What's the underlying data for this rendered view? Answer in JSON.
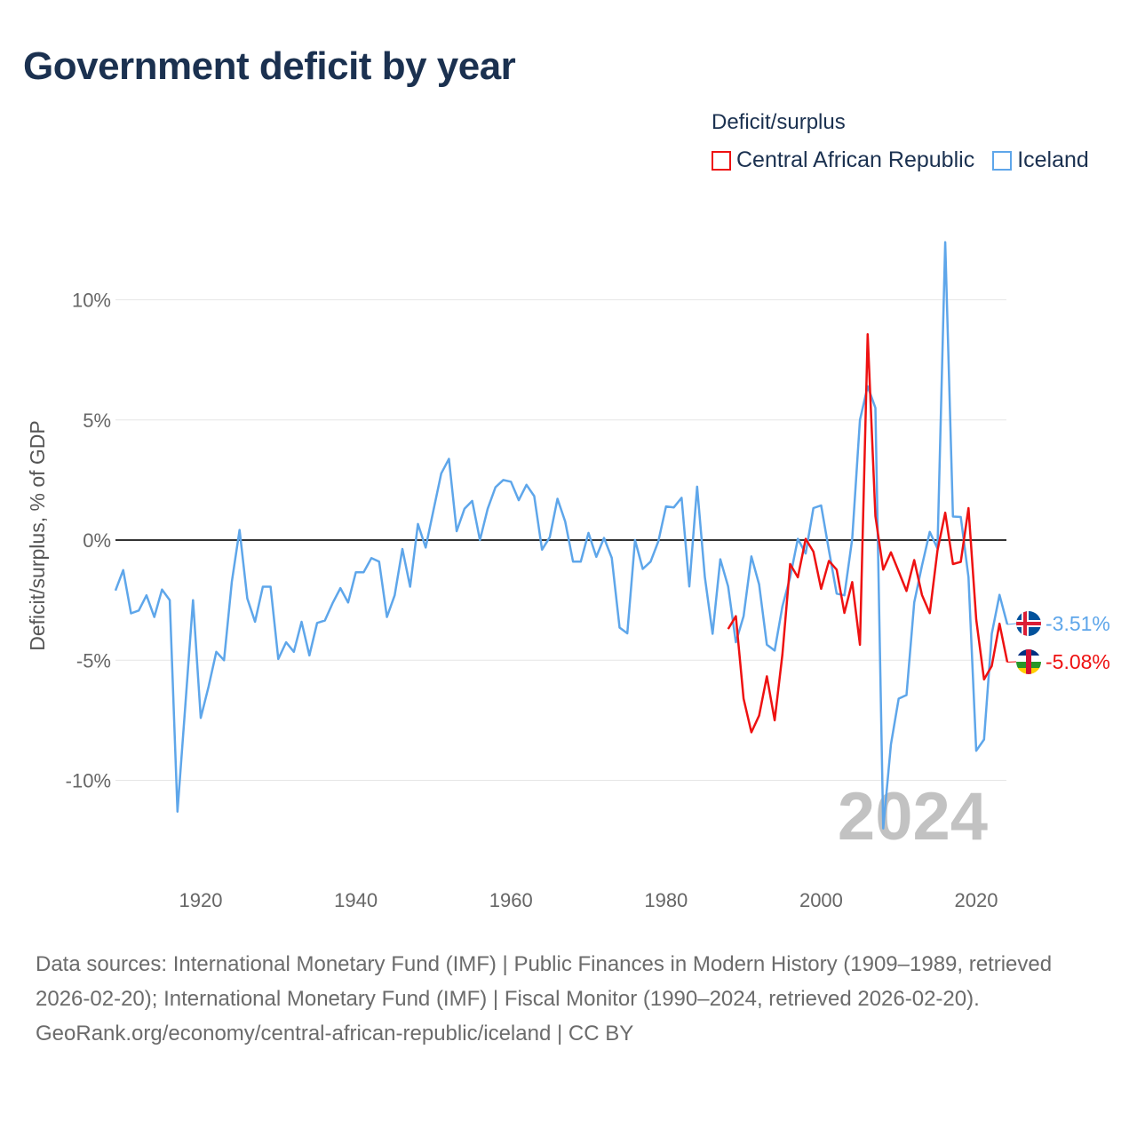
{
  "title": "Government deficit by year",
  "colors": {
    "car": "#ee1111",
    "iceland": "#5ea6ea",
    "zero": "#333333",
    "grid": "#e6e6e6",
    "text": "#1b3150"
  },
  "chart_data": {
    "type": "line",
    "title": "Government deficit by year",
    "ylabel": "Deficit/surplus, % of GDP",
    "xlabel": "",
    "xlim": [
      1909,
      2024
    ],
    "ylim": [
      -13,
      13
    ],
    "x_ticks": [
      1920,
      1940,
      1960,
      1980,
      2000,
      2020
    ],
    "x_tick_labels": [
      "1920",
      "1940",
      "1960",
      "1980",
      "2000",
      "2020"
    ],
    "y_ticks": [
      10,
      5,
      0,
      -5,
      -10
    ],
    "y_tick_labels": [
      "10%",
      "5%",
      "0%",
      "-5%",
      "-10%"
    ],
    "grid": true,
    "legend_title": "Deficit/surplus",
    "legend_position": "top-right",
    "year_watermark": "2024",
    "series": [
      {
        "name": "Central African Republic",
        "key": "car",
        "start_year": 1988,
        "end_label": "-5.08%",
        "values": [
          -3.7,
          -3.17,
          -6.6,
          -8.0,
          -7.3,
          -5.67,
          -7.5,
          -4.76,
          -1.0,
          -1.55,
          0.05,
          -0.48,
          -2.03,
          -0.87,
          -1.23,
          -3.03,
          -1.75,
          -4.36,
          8.57,
          1.0,
          -1.23,
          -0.51,
          -1.31,
          -2.12,
          -0.83,
          -2.28,
          -3.04,
          -0.43,
          1.14,
          -1.0,
          -0.91,
          1.33,
          -3.3,
          -5.8,
          -5.24,
          -3.48,
          -5.08
        ]
      },
      {
        "name": "Iceland",
        "key": "iceland",
        "start_year": 1909,
        "end_label": "-3.51%",
        "values": [
          -2.1,
          -1.25,
          -3.05,
          -2.93,
          -2.3,
          -3.2,
          -2.06,
          -2.5,
          -11.3,
          -6.9,
          -2.5,
          -7.4,
          -6.1,
          -4.65,
          -5.0,
          -1.73,
          0.42,
          -2.43,
          -3.4,
          -1.94,
          -1.94,
          -4.95,
          -4.25,
          -4.65,
          -3.4,
          -4.8,
          -3.45,
          -3.35,
          -2.63,
          -2.0,
          -2.6,
          -1.34,
          -1.34,
          -0.75,
          -0.9,
          -3.2,
          -2.3,
          -0.37,
          -1.94,
          0.67,
          -0.31,
          1.23,
          2.77,
          3.38,
          0.37,
          1.3,
          1.63,
          0.0,
          1.3,
          2.2,
          2.5,
          2.43,
          1.66,
          2.3,
          1.83,
          -0.4,
          0.12,
          1.72,
          0.77,
          -0.9,
          -0.9,
          0.3,
          -0.7,
          0.09,
          -0.74,
          -3.64,
          -3.88,
          0.0,
          -1.2,
          -0.9,
          -0.06,
          1.4,
          1.36,
          1.76,
          -1.93,
          2.22,
          -1.54,
          -3.9,
          -0.8,
          -1.93,
          -4.25,
          -3.17,
          -0.68,
          -1.85,
          -4.35,
          -4.6,
          -2.76,
          -1.55,
          0.05,
          -0.56,
          1.33,
          1.44,
          -0.43,
          -2.23,
          -2.3,
          0.05,
          5.0,
          6.4,
          5.5,
          -12.0,
          -8.5,
          -6.6,
          -6.45,
          -2.6,
          -1.07,
          0.34,
          -0.35,
          12.4,
          0.98,
          0.96,
          -1.55,
          -8.77,
          -8.3,
          -3.9,
          -2.28,
          -3.51
        ]
      }
    ]
  },
  "footer": {
    "sources": "Data sources: International Monetary Fund (IMF) | Public Finances in Modern History (1909–1989, retrieved 2026-02-20); International Monetary Fund (IMF) | Fiscal Monitor (1990–2024, retrieved 2026-02-20).",
    "attribution": "GeoRank.org/economy/central-african-republic/iceland | CC BY"
  }
}
